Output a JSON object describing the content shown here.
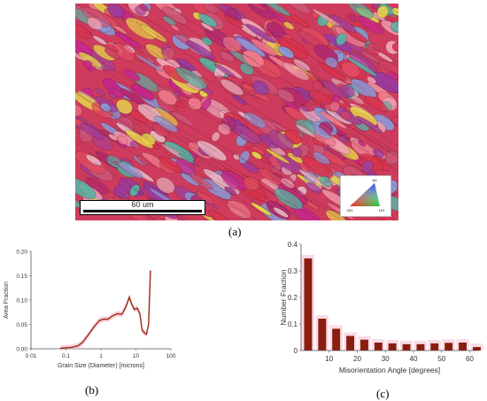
{
  "figure": {
    "panel_labels": {
      "a": "(a)",
      "b": "(b)",
      "c": "(c)"
    }
  },
  "ebsd_map": {
    "scale_bar_label": "60 um",
    "ipf_key_labels": {
      "top": "111",
      "left": "001",
      "right": "101"
    },
    "palette": [
      "#d9334c",
      "#c7268a",
      "#e04a5f",
      "#f07a8a",
      "#b32a6e",
      "#e8b0bf",
      "#9c3a9c",
      "#d04060",
      "#f2a0b0",
      "#8a9ad6",
      "#5ab0a0",
      "#e6d24a",
      "#cc5577",
      "#a84090"
    ]
  },
  "chart_data": [
    {
      "type": "line",
      "xscale": "log",
      "xlabel": "Grain Size (Diameter) [microns]",
      "ylabel": "Area Fraction",
      "xlim": [
        0.01,
        100
      ],
      "ylim": [
        0,
        0.2
      ],
      "xticks": [
        "0.01",
        "0.1",
        "1",
        "10",
        "100"
      ],
      "yticks": [
        "0.00",
        "0.05",
        "0.10",
        "0.15",
        "0.20"
      ],
      "x": [
        0.07,
        0.1,
        0.15,
        0.22,
        0.3,
        0.45,
        0.65,
        0.9,
        1.2,
        1.6,
        2.2,
        3,
        4,
        5.2,
        6.5,
        7.5,
        9,
        11,
        13,
        15,
        18,
        20,
        23,
        26
      ],
      "y": [
        0.001,
        0.002,
        0.003,
        0.006,
        0.013,
        0.03,
        0.046,
        0.058,
        0.061,
        0.061,
        0.068,
        0.072,
        0.071,
        0.087,
        0.106,
        0.092,
        0.081,
        0.083,
        0.072,
        0.038,
        0.032,
        0.03,
        0.05,
        0.16
      ],
      "line_color": "#9c2a14",
      "band_color": "#f4bfd0"
    },
    {
      "type": "bar",
      "xlabel": "Misorientation Angle [degrees]",
      "ylabel": "Number Fraction",
      "xlim": [
        0,
        63
      ],
      "ylim": [
        0,
        0.4
      ],
      "xticks": [
        "10",
        "20",
        "30",
        "40",
        "50",
        "60"
      ],
      "yticks": [
        "0",
        "0.1",
        "0.2",
        "0.3",
        "0.4"
      ],
      "x": [
        2.5,
        7.5,
        12.5,
        17.5,
        22.5,
        27.5,
        32.5,
        37.5,
        42.5,
        47.5,
        52.5,
        57.5,
        62.5
      ],
      "values": [
        0.347,
        0.12,
        0.082,
        0.055,
        0.041,
        0.03,
        0.027,
        0.024,
        0.024,
        0.027,
        0.029,
        0.03,
        0.013
      ],
      "bar_color": "#8a1c10",
      "shade_color": "#f4bfd0"
    }
  ]
}
